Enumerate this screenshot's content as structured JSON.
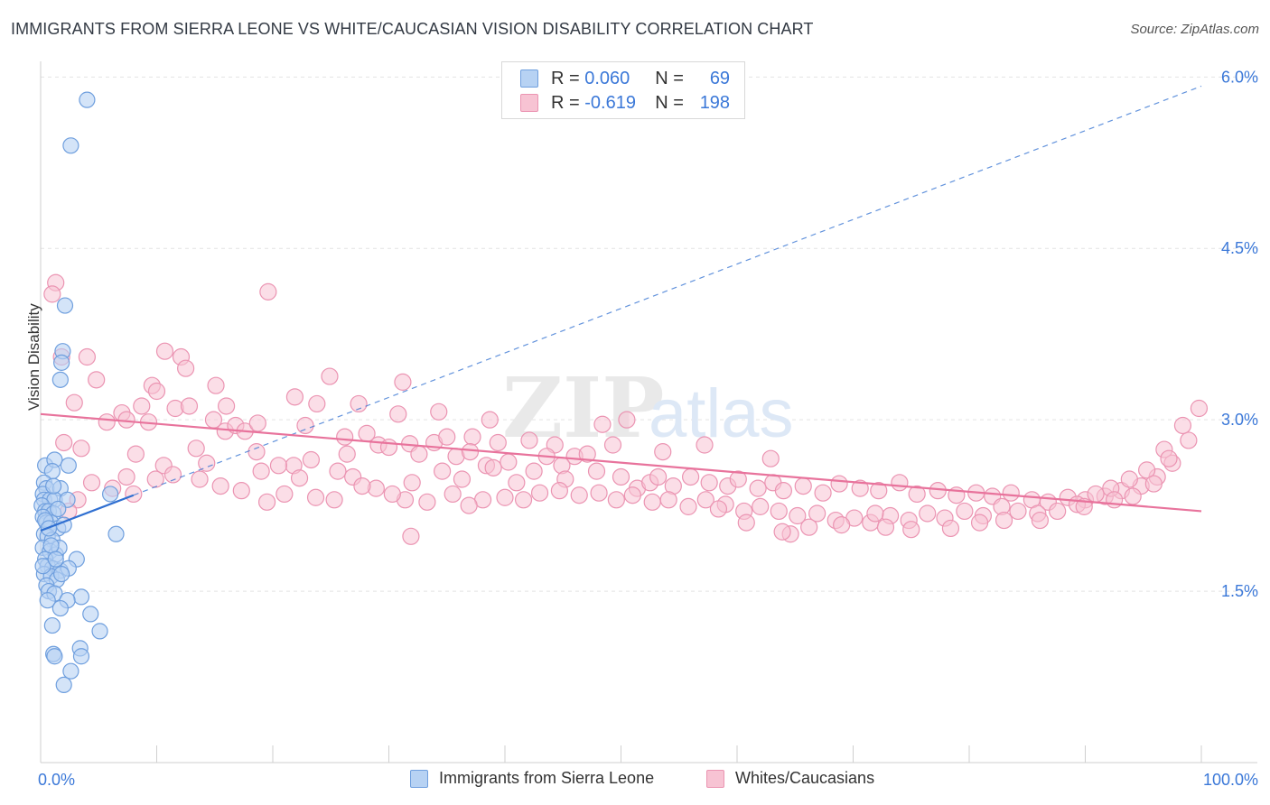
{
  "title": "IMMIGRANTS FROM SIERRA LEONE VS WHITE/CAUCASIAN VISION DISABILITY CORRELATION CHART",
  "source": "Source: ZipAtlas.com",
  "watermark": {
    "zip": "ZIP",
    "atlas": "atlas"
  },
  "colors": {
    "blue_fill": "#b7d2f3",
    "blue_stroke": "#6f9fde",
    "blue_line": "#2f6fd1",
    "pink_fill": "#f7c3d3",
    "pink_stroke": "#eb94b2",
    "pink_line": "#e8739c",
    "axis_text": "#3b78d8"
  },
  "legend": {
    "rows": [
      {
        "r_label": "R =",
        "r_value": "0.060",
        "n_label": "N =",
        "n_value": "69"
      },
      {
        "r_label": "R =",
        "r_value": "-0.619",
        "n_label": "N =",
        "n_value": "198"
      }
    ]
  },
  "bottom_legend": [
    "Immigrants from Sierra Leone",
    "Whites/Caucasians"
  ],
  "chart_data": {
    "type": "scatter",
    "title": "IMMIGRANTS FROM SIERRA LEONE VS WHITE/CAUCASIAN VISION DISABILITY CORRELATION CHART",
    "xlabel": "",
    "ylabel": "Vision Disability",
    "xlim": [
      0,
      100
    ],
    "ylim": [
      0,
      6.2
    ],
    "x_tick_labels": [
      "0.0%",
      "100.0%"
    ],
    "y_ticks": [
      1.5,
      3.0,
      4.5,
      6.0
    ],
    "y_tick_labels": [
      "1.5%",
      "3.0%",
      "4.5%",
      "6.0%"
    ],
    "series": [
      {
        "name": "Immigrants from Sierra Leone",
        "R": 0.06,
        "N": 69,
        "trend_solid": {
          "x": [
            0,
            8
          ],
          "y": [
            2.03,
            2.34
          ]
        },
        "trend_dashed": {
          "x": [
            8,
            100
          ],
          "y": [
            2.34,
            5.92
          ]
        },
        "points": [
          [
            4.0,
            5.8
          ],
          [
            2.6,
            5.4
          ],
          [
            2.1,
            4.0
          ],
          [
            1.9,
            3.6
          ],
          [
            1.8,
            3.5
          ],
          [
            1.7,
            3.35
          ],
          [
            0.4,
            2.6
          ],
          [
            1.2,
            2.65
          ],
          [
            1.0,
            2.55
          ],
          [
            2.4,
            2.6
          ],
          [
            0.3,
            2.45
          ],
          [
            0.5,
            2.4
          ],
          [
            0.2,
            2.35
          ],
          [
            1.7,
            2.4
          ],
          [
            0.3,
            2.3
          ],
          [
            0.8,
            2.3
          ],
          [
            1.2,
            2.3
          ],
          [
            2.3,
            2.3
          ],
          [
            6.0,
            2.35
          ],
          [
            0.1,
            2.25
          ],
          [
            0.4,
            2.2
          ],
          [
            0.7,
            2.2
          ],
          [
            1.1,
            2.18
          ],
          [
            0.2,
            2.15
          ],
          [
            0.5,
            2.1
          ],
          [
            0.9,
            2.1
          ],
          [
            1.5,
            2.05
          ],
          [
            2.0,
            2.08
          ],
          [
            0.3,
            2.0
          ],
          [
            0.6,
            1.98
          ],
          [
            1.0,
            1.95
          ],
          [
            6.5,
            2.0
          ],
          [
            0.2,
            1.88
          ],
          [
            0.8,
            1.85
          ],
          [
            1.3,
            1.82
          ],
          [
            1.6,
            1.88
          ],
          [
            0.4,
            1.78
          ],
          [
            3.1,
            1.78
          ],
          [
            0.6,
            1.72
          ],
          [
            1.0,
            1.7
          ],
          [
            1.7,
            1.68
          ],
          [
            2.4,
            1.7
          ],
          [
            0.3,
            1.65
          ],
          [
            0.9,
            1.63
          ],
          [
            1.4,
            1.6
          ],
          [
            1.8,
            1.65
          ],
          [
            0.5,
            1.55
          ],
          [
            0.7,
            1.5
          ],
          [
            1.2,
            1.48
          ],
          [
            3.5,
            1.45
          ],
          [
            0.6,
            1.42
          ],
          [
            2.3,
            1.42
          ],
          [
            1.7,
            1.35
          ],
          [
            4.3,
            1.3
          ],
          [
            1.0,
            1.2
          ],
          [
            5.1,
            1.15
          ],
          [
            3.4,
            1.0
          ],
          [
            1.1,
            0.95
          ],
          [
            1.2,
            0.93
          ],
          [
            3.5,
            0.93
          ],
          [
            2.6,
            0.8
          ],
          [
            2.0,
            0.68
          ],
          [
            0.4,
            2.12
          ],
          [
            0.9,
            1.9
          ],
          [
            1.5,
            2.22
          ],
          [
            0.2,
            1.72
          ],
          [
            1.1,
            2.42
          ],
          [
            0.7,
            2.05
          ],
          [
            1.3,
            1.78
          ]
        ]
      },
      {
        "name": "Whites/Caucasians",
        "R": -0.619,
        "N": 198,
        "trend": {
          "x": [
            0,
            100
          ],
          "y": [
            3.05,
            2.2
          ]
        },
        "points": [
          [
            1.3,
            4.2
          ],
          [
            1.0,
            4.1
          ],
          [
            19.6,
            4.12
          ],
          [
            1.8,
            3.55
          ],
          [
            4.0,
            3.55
          ],
          [
            10.7,
            3.6
          ],
          [
            12.1,
            3.55
          ],
          [
            12.5,
            3.45
          ],
          [
            4.8,
            3.35
          ],
          [
            9.6,
            3.3
          ],
          [
            10.0,
            3.25
          ],
          [
            15.1,
            3.3
          ],
          [
            24.9,
            3.38
          ],
          [
            31.2,
            3.33
          ],
          [
            2.9,
            3.15
          ],
          [
            7.0,
            3.06
          ],
          [
            8.7,
            3.12
          ],
          [
            11.6,
            3.1
          ],
          [
            12.8,
            3.12
          ],
          [
            16.0,
            3.12
          ],
          [
            21.9,
            3.2
          ],
          [
            23.8,
            3.14
          ],
          [
            27.4,
            3.14
          ],
          [
            30.8,
            3.05
          ],
          [
            34.3,
            3.07
          ],
          [
            38.7,
            3.0
          ],
          [
            48.4,
            2.96
          ],
          [
            50.5,
            3.0
          ],
          [
            5.7,
            2.98
          ],
          [
            7.4,
            3.0
          ],
          [
            9.3,
            2.98
          ],
          [
            14.9,
            3.0
          ],
          [
            15.9,
            2.9
          ],
          [
            16.8,
            2.95
          ],
          [
            17.6,
            2.9
          ],
          [
            18.7,
            2.97
          ],
          [
            22.8,
            2.95
          ],
          [
            26.2,
            2.85
          ],
          [
            28.1,
            2.88
          ],
          [
            29.1,
            2.78
          ],
          [
            31.8,
            2.79
          ],
          [
            33.9,
            2.8
          ],
          [
            35.0,
            2.85
          ],
          [
            37.2,
            2.85
          ],
          [
            39.4,
            2.8
          ],
          [
            42.1,
            2.82
          ],
          [
            44.3,
            2.78
          ],
          [
            49.3,
            2.78
          ],
          [
            57.2,
            2.78
          ],
          [
            3.5,
            2.75
          ],
          [
            8.2,
            2.7
          ],
          [
            13.4,
            2.75
          ],
          [
            18.6,
            2.72
          ],
          [
            21.8,
            2.6
          ],
          [
            23.3,
            2.65
          ],
          [
            26.4,
            2.7
          ],
          [
            30.0,
            2.76
          ],
          [
            32.6,
            2.7
          ],
          [
            35.8,
            2.68
          ],
          [
            37.0,
            2.72
          ],
          [
            38.4,
            2.6
          ],
          [
            40.3,
            2.63
          ],
          [
            43.6,
            2.68
          ],
          [
            46.0,
            2.68
          ],
          [
            47.1,
            2.7
          ],
          [
            53.6,
            2.72
          ],
          [
            62.9,
            2.66
          ],
          [
            7.4,
            2.5
          ],
          [
            10.6,
            2.6
          ],
          [
            14.3,
            2.62
          ],
          [
            19.0,
            2.55
          ],
          [
            20.5,
            2.6
          ],
          [
            22.3,
            2.49
          ],
          [
            25.6,
            2.55
          ],
          [
            26.9,
            2.5
          ],
          [
            32.0,
            2.45
          ],
          [
            34.6,
            2.55
          ],
          [
            36.3,
            2.48
          ],
          [
            39.0,
            2.58
          ],
          [
            41.0,
            2.45
          ],
          [
            42.5,
            2.55
          ],
          [
            44.9,
            2.6
          ],
          [
            45.2,
            2.48
          ],
          [
            47.9,
            2.55
          ],
          [
            50.0,
            2.5
          ],
          [
            51.4,
            2.4
          ],
          [
            52.5,
            2.45
          ],
          [
            53.2,
            2.5
          ],
          [
            54.5,
            2.42
          ],
          [
            56.0,
            2.5
          ],
          [
            57.6,
            2.45
          ],
          [
            59.2,
            2.42
          ],
          [
            60.1,
            2.48
          ],
          [
            61.8,
            2.4
          ],
          [
            63.1,
            2.45
          ],
          [
            64.0,
            2.38
          ],
          [
            65.7,
            2.42
          ],
          [
            67.4,
            2.36
          ],
          [
            68.8,
            2.44
          ],
          [
            70.6,
            2.4
          ],
          [
            72.2,
            2.38
          ],
          [
            74.0,
            2.45
          ],
          [
            75.5,
            2.35
          ],
          [
            77.3,
            2.38
          ],
          [
            78.9,
            2.34
          ],
          [
            80.6,
            2.36
          ],
          [
            82.0,
            2.33
          ],
          [
            83.6,
            2.36
          ],
          [
            85.4,
            2.3
          ],
          [
            86.8,
            2.28
          ],
          [
            88.5,
            2.32
          ],
          [
            90.0,
            2.3
          ],
          [
            91.7,
            2.33
          ],
          [
            93.1,
            2.38
          ],
          [
            94.8,
            2.42
          ],
          [
            96.2,
            2.5
          ],
          [
            97.5,
            2.62
          ],
          [
            98.9,
            2.82
          ],
          [
            99.8,
            3.1
          ],
          [
            98.4,
            2.95
          ],
          [
            96.8,
            2.74
          ],
          [
            95.3,
            2.56
          ],
          [
            93.8,
            2.48
          ],
          [
            92.2,
            2.4
          ],
          [
            90.9,
            2.35
          ],
          [
            89.3,
            2.26
          ],
          [
            87.6,
            2.2
          ],
          [
            85.9,
            2.18
          ],
          [
            84.2,
            2.2
          ],
          [
            82.8,
            2.24
          ],
          [
            81.2,
            2.16
          ],
          [
            79.6,
            2.2
          ],
          [
            77.9,
            2.14
          ],
          [
            76.4,
            2.18
          ],
          [
            74.8,
            2.12
          ],
          [
            73.2,
            2.16
          ],
          [
            71.5,
            2.1
          ],
          [
            70.1,
            2.14
          ],
          [
            68.5,
            2.12
          ],
          [
            66.9,
            2.18
          ],
          [
            65.2,
            2.16
          ],
          [
            63.6,
            2.2
          ],
          [
            62.0,
            2.24
          ],
          [
            60.6,
            2.2
          ],
          [
            59.0,
            2.26
          ],
          [
            57.3,
            2.3
          ],
          [
            55.8,
            2.24
          ],
          [
            54.1,
            2.3
          ],
          [
            52.7,
            2.28
          ],
          [
            51.0,
            2.34
          ],
          [
            49.6,
            2.3
          ],
          [
            48.1,
            2.36
          ],
          [
            46.4,
            2.34
          ],
          [
            44.7,
            2.38
          ],
          [
            43.0,
            2.36
          ],
          [
            41.6,
            2.3
          ],
          [
            40.0,
            2.32
          ],
          [
            38.1,
            2.3
          ],
          [
            36.9,
            2.25
          ],
          [
            35.5,
            2.35
          ],
          [
            33.3,
            2.28
          ],
          [
            31.4,
            2.3
          ],
          [
            30.3,
            2.35
          ],
          [
            28.9,
            2.4
          ],
          [
            27.7,
            2.42
          ],
          [
            25.3,
            2.3
          ],
          [
            23.7,
            2.32
          ],
          [
            21.0,
            2.35
          ],
          [
            19.5,
            2.28
          ],
          [
            17.3,
            2.38
          ],
          [
            15.5,
            2.42
          ],
          [
            13.7,
            2.48
          ],
          [
            11.4,
            2.52
          ],
          [
            9.9,
            2.48
          ],
          [
            8.0,
            2.35
          ],
          [
            6.2,
            2.4
          ],
          [
            4.4,
            2.45
          ],
          [
            3.2,
            2.3
          ],
          [
            2.4,
            2.2
          ],
          [
            2.0,
            2.8
          ],
          [
            60.8,
            2.1
          ],
          [
            69.0,
            2.08
          ],
          [
            72.8,
            2.06
          ],
          [
            75.0,
            2.04
          ],
          [
            78.4,
            2.05
          ],
          [
            80.9,
            2.1
          ],
          [
            83.0,
            2.12
          ],
          [
            66.2,
            2.06
          ],
          [
            64.6,
            2.0
          ],
          [
            63.9,
            2.02
          ],
          [
            71.9,
            2.18
          ],
          [
            86.1,
            2.12
          ],
          [
            89.9,
            2.24
          ],
          [
            92.5,
            2.3
          ],
          [
            94.1,
            2.33
          ],
          [
            95.9,
            2.44
          ],
          [
            97.2,
            2.66
          ],
          [
            58.4,
            2.22
          ],
          [
            31.9,
            1.98
          ]
        ]
      }
    ]
  }
}
